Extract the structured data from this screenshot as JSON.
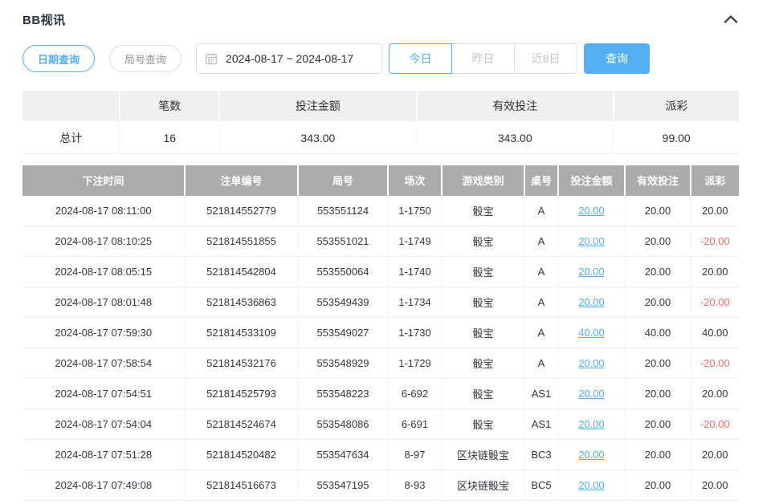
{
  "header": {
    "title": "BB视讯"
  },
  "filters": {
    "date_query_label": "日期查询",
    "round_query_label": "局号查询",
    "date_range_value": "2024-08-17 ~ 2024-08-17",
    "quick_buttons": [
      {
        "label": "今日",
        "active": true
      },
      {
        "label": "昨日",
        "active": false
      },
      {
        "label": "近8日",
        "active": false
      }
    ],
    "query_label": "查询"
  },
  "summary": {
    "headers": [
      "",
      "笔数",
      "投注金额",
      "有效投注",
      "派彩"
    ],
    "total_label": "总计",
    "count": "16",
    "bet_amount": "343.00",
    "valid_bet": "343.00",
    "payout": "99.00"
  },
  "table": {
    "headers": [
      "下注时间",
      "注单编号",
      "局号",
      "场次",
      "游戏类别",
      "桌号",
      "投注金额",
      "有效投注",
      "派彩"
    ],
    "rows": [
      [
        "2024-08-17 08:11:00",
        "521814552779",
        "553551124",
        "1-1750",
        "骰宝",
        "A",
        "20.00",
        "20.00",
        "20.00"
      ],
      [
        "2024-08-17 08:10:25",
        "521814551855",
        "553551021",
        "1-1749",
        "骰宝",
        "A",
        "20.00",
        "20.00",
        "-20.00"
      ],
      [
        "2024-08-17 08:05:15",
        "521814542804",
        "553550064",
        "1-1740",
        "骰宝",
        "A",
        "20.00",
        "20.00",
        "20.00"
      ],
      [
        "2024-08-17 08:01:48",
        "521814536863",
        "553549439",
        "1-1734",
        "骰宝",
        "A",
        "20.00",
        "20.00",
        "-20.00"
      ],
      [
        "2024-08-17 07:59:30",
        "521814533109",
        "553549027",
        "1-1730",
        "骰宝",
        "A",
        "40.00",
        "40.00",
        "40.00"
      ],
      [
        "2024-08-17 07:58:54",
        "521814532176",
        "553548929",
        "1-1729",
        "骰宝",
        "A",
        "20.00",
        "20.00",
        "-20.00"
      ],
      [
        "2024-08-17 07:54:51",
        "521814525793",
        "553548223",
        "6-692",
        "骰宝",
        "AS1",
        "20.00",
        "20.00",
        "20.00"
      ],
      [
        "2024-08-17 07:54:04",
        "521814524674",
        "553548086",
        "6-691",
        "骰宝",
        "AS1",
        "20.00",
        "20.00",
        "-20.00"
      ],
      [
        "2024-08-17 07:51:28",
        "521814520482",
        "553547634",
        "8-97",
        "区块链骰宝",
        "BC3",
        "20.00",
        "20.00",
        "20.00"
      ],
      [
        "2024-08-17 07:49:08",
        "521814516673",
        "553547195",
        "8-93",
        "区块链骰宝",
        "BC5",
        "20.00",
        "20.00",
        "20.00"
      ]
    ]
  },
  "colors": {
    "accent_blue": "#54aef5",
    "query_button_blue": "#55b0f2",
    "negative_red": "#f56c6c",
    "table_header_gray": "#ababab",
    "summary_header_gray": "#f0f0f0"
  }
}
